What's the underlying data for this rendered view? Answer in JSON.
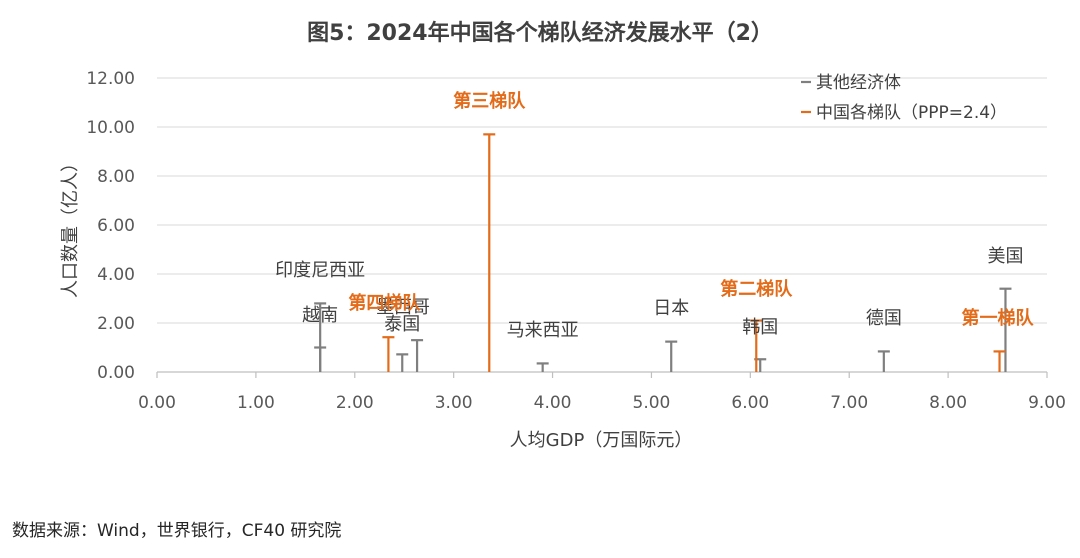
{
  "colors": {
    "other": "#7f7f7f",
    "china": "#e36c1a",
    "grid": "#d9d9d9",
    "axis": "#bfbfbf"
  },
  "source": "数据来源：Wind，世界银行，CF40 研究院",
  "chart_data": {
    "type": "scatter",
    "title": "图5：2024年中国各个梯队经济发展水平（2）",
    "xlabel": "人均GDP（万国际元）",
    "ylabel": "人口数量（亿人）",
    "xlim": [
      0,
      9
    ],
    "ylim": [
      0,
      12
    ],
    "x_ticks": [
      "0.00",
      "1.00",
      "2.00",
      "3.00",
      "4.00",
      "5.00",
      "6.00",
      "7.00",
      "8.00",
      "9.00"
    ],
    "y_ticks": [
      "0.00",
      "2.00",
      "4.00",
      "6.00",
      "8.00",
      "10.00",
      "12.00"
    ],
    "legend": [
      "其他经济体",
      "中国各梯队（PPP=2.4）"
    ],
    "series": [
      {
        "name": "其他经济体",
        "points": [
          {
            "label": "越南",
            "x": 1.65,
            "y": 1.0
          },
          {
            "label": "印度尼西亚",
            "x": 1.65,
            "y": 2.8
          },
          {
            "label": "泰国",
            "x": 2.48,
            "y": 0.72
          },
          {
            "label": "墨西哥",
            "x": 2.63,
            "y": 1.3
          },
          {
            "label": "马来西亚",
            "x": 3.9,
            "y": 0.35
          },
          {
            "label": "日本",
            "x": 5.2,
            "y": 1.24
          },
          {
            "label": "韩国",
            "x": 6.1,
            "y": 0.52
          },
          {
            "label": "德国",
            "x": 7.35,
            "y": 0.84
          },
          {
            "label": "美国",
            "x": 8.58,
            "y": 3.4
          }
        ]
      },
      {
        "name": "中国各梯队（PPP=2.4）",
        "points": [
          {
            "label": "第四梯队",
            "x": 2.34,
            "y": 1.42
          },
          {
            "label": "第三梯队",
            "x": 3.36,
            "y": 9.7
          },
          {
            "label": "第二梯队",
            "x": 6.06,
            "y": 2.1
          },
          {
            "label": "第一梯队",
            "x": 8.52,
            "y": 0.84
          }
        ]
      }
    ]
  }
}
